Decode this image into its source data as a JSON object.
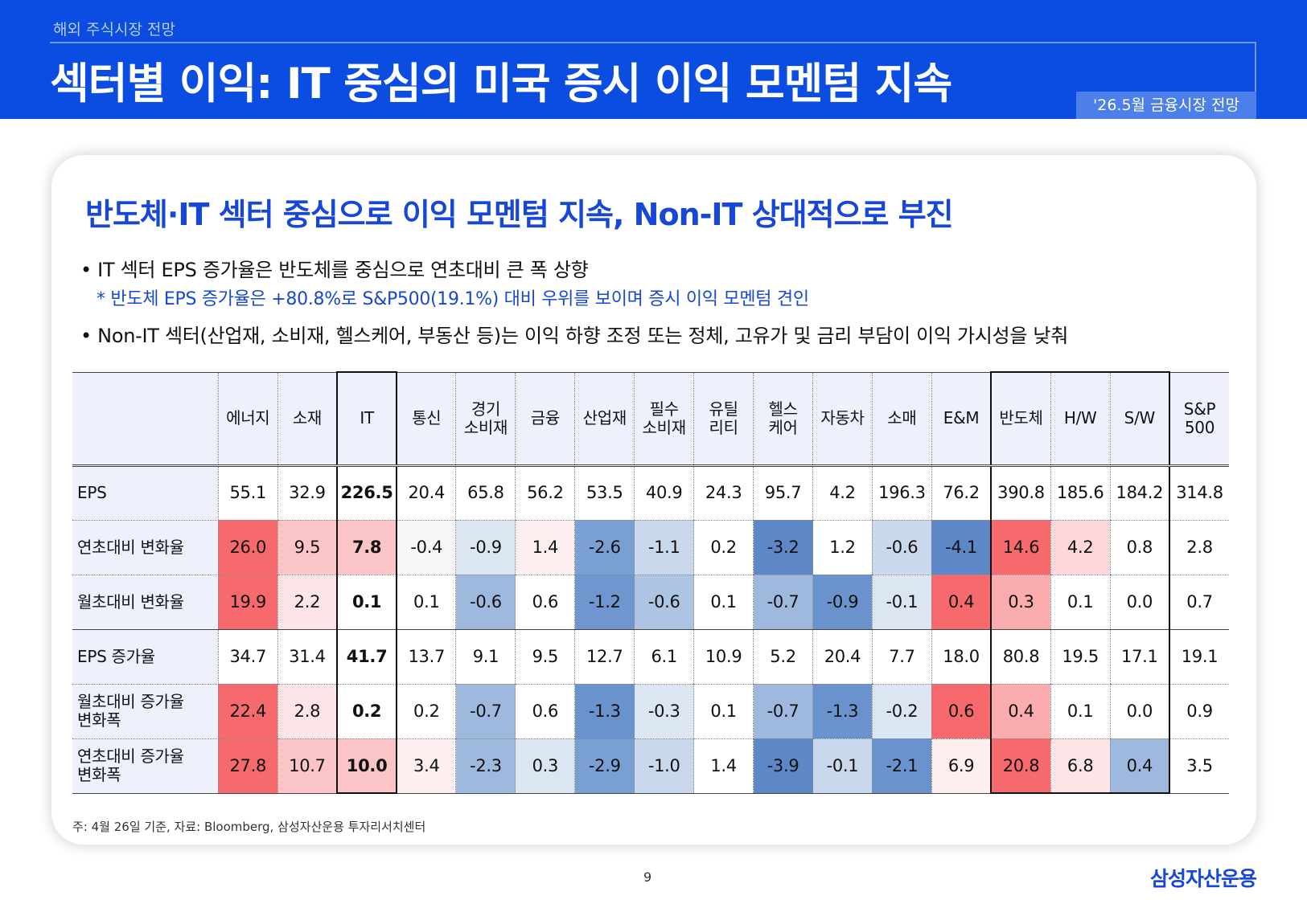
{
  "header": {
    "subtitle": "해외 주식시장 전망",
    "title": "섹터별 이익: IT 중심의 미국 증시 이익 모멘텀 지속",
    "badge": "'26.5월 금융시장 전망"
  },
  "card": {
    "headline": "반도체·IT 섹터 중심으로 이익 모멘텀 지속, Non-IT 상대적으로 부진",
    "bullet1": "• IT 섹터 EPS 증가율은 반도체를 중심으로 연초대비 큰 폭 상향",
    "sub1": "* 반도체 EPS 증가율은 +80.8%로 S&P500(19.1%) 대비 우위를 보이며 증시 이익 모멘텀 견인",
    "bullet2": "• Non-IT 섹터(산업재, 소비재, 헬스케어, 부동산 등)는 이익 하향 조정 또는 정체, 고유가 및 금리 부담이 이익 가시성을 낮춰"
  },
  "table": {
    "columns": [
      {
        "l1": "에너지",
        "l2": ""
      },
      {
        "l1": "소재",
        "l2": ""
      },
      {
        "l1": "IT",
        "l2": ""
      },
      {
        "l1": "통신",
        "l2": ""
      },
      {
        "l1": "경기",
        "l2": "소비재"
      },
      {
        "l1": "금융",
        "l2": ""
      },
      {
        "l1": "산업재",
        "l2": ""
      },
      {
        "l1": "필수",
        "l2": "소비재"
      },
      {
        "l1": "유틸",
        "l2": "리티"
      },
      {
        "l1": "헬스",
        "l2": "케어"
      },
      {
        "l1": "자동차",
        "l2": ""
      },
      {
        "l1": "소매",
        "l2": ""
      },
      {
        "l1": "E&M",
        "l2": ""
      },
      {
        "l1": "반도체",
        "l2": ""
      },
      {
        "l1": "H/W",
        "l2": ""
      },
      {
        "l1": "S/W",
        "l2": ""
      },
      {
        "l1": "S&P",
        "l2": "500"
      }
    ],
    "rows": [
      {
        "label": "EPS",
        "label2": "",
        "colored": false,
        "values": [
          "55.1",
          "32.9",
          "226.5",
          "20.4",
          "65.8",
          "56.2",
          "53.5",
          "40.9",
          "24.3",
          "95.7",
          "4.2",
          "196.3",
          "76.2",
          "390.8",
          "185.6",
          "184.2",
          "314.8"
        ]
      },
      {
        "label": "연초대비 변화율",
        "label2": "",
        "colored": true,
        "values": [
          "26.0",
          "9.5",
          "7.8",
          "-0.4",
          "-0.9",
          "1.4",
          "-2.6",
          "-1.1",
          "0.2",
          "-3.2",
          "1.2",
          "-0.6",
          "-4.1",
          "14.6",
          "4.2",
          "0.8",
          "2.8"
        ]
      },
      {
        "label": "월초대비 변화율",
        "label2": "",
        "colored": true,
        "values": [
          "19.9",
          "2.2",
          "0.1",
          "0.1",
          "-0.6",
          "0.6",
          "-1.2",
          "-0.6",
          "0.1",
          "-0.7",
          "-0.9",
          "-0.1",
          "0.4",
          "0.3",
          "0.1",
          "0.0",
          "0.7"
        ]
      },
      {
        "label": "EPS 증가율",
        "label2": "",
        "colored": false,
        "values": [
          "34.7",
          "31.4",
          "41.7",
          "13.7",
          "9.1",
          "9.5",
          "12.7",
          "6.1",
          "10.9",
          "5.2",
          "20.4",
          "7.7",
          "18.0",
          "80.8",
          "19.5",
          "17.1",
          "19.1"
        ]
      },
      {
        "label": "월초대비 증가율",
        "label2": "변화폭",
        "colored": true,
        "values": [
          "22.4",
          "2.8",
          "0.2",
          "0.2",
          "-0.7",
          "0.6",
          "-1.3",
          "-0.3",
          "0.1",
          "-0.7",
          "-1.3",
          "-0.2",
          "0.6",
          "0.4",
          "0.1",
          "0.0",
          "0.9"
        ]
      },
      {
        "label": "연초대비 증가율",
        "label2": "변화폭",
        "colored": true,
        "values": [
          "27.8",
          "10.7",
          "10.0",
          "3.4",
          "-2.3",
          "0.3",
          "-2.9",
          "-1.0",
          "1.4",
          "-3.9",
          "-0.1",
          "-2.1",
          "6.9",
          "20.8",
          "6.8",
          "0.4",
          "3.5"
        ]
      }
    ],
    "cell_colors": [
      [
        "#ffffff",
        "#ffffff",
        "#ffffff",
        "#ffffff",
        "#ffffff",
        "#ffffff",
        "#ffffff",
        "#ffffff",
        "#ffffff",
        "#ffffff",
        "#ffffff",
        "#ffffff",
        "#ffffff",
        "#ffffff",
        "#ffffff",
        "#ffffff",
        "#ffffff"
      ],
      [
        "#f66a6d",
        "#fbc5c7",
        "#fbc5c7",
        "#f8f8fb",
        "#dce6f2",
        "#fdeef0",
        "#7a9fd2",
        "#c9d8ec",
        "#ffffff",
        "#5d87c6",
        "#ffffff",
        "#c9d8ec",
        "#5d87c6",
        "#f66a6d",
        "#fdd7d9",
        "#ffffff",
        "#ffffff"
      ],
      [
        "#f66a6d",
        "#fde4e6",
        "#ffffff",
        "#ffffff",
        "#9fb9de",
        "#ffffff",
        "#6f96cf",
        "#aec4e3",
        "#ffffff",
        "#9fb9de",
        "#6a92cd",
        "#dce6f2",
        "#f66a6d",
        "#fbacae",
        "#ffffff",
        "#ffffff",
        "#ffffff"
      ],
      [
        "#ffffff",
        "#ffffff",
        "#ffffff",
        "#ffffff",
        "#ffffff",
        "#ffffff",
        "#ffffff",
        "#ffffff",
        "#ffffff",
        "#ffffff",
        "#ffffff",
        "#ffffff",
        "#ffffff",
        "#ffffff",
        "#ffffff",
        "#ffffff",
        "#ffffff"
      ],
      [
        "#f66a6d",
        "#fde4e6",
        "#ffffff",
        "#ffffff",
        "#9fb9de",
        "#ffffff",
        "#6a92cd",
        "#dce6f2",
        "#ffffff",
        "#9fb9de",
        "#6a92cd",
        "#dce6f2",
        "#f66a6d",
        "#fbacae",
        "#ffffff",
        "#ffffff",
        "#ffffff"
      ],
      [
        "#f66a6d",
        "#fbc5c7",
        "#fbc5c7",
        "#fdeef0",
        "#9fb9de",
        "#dce6f2",
        "#7a9fd2",
        "#c9d8ec",
        "#ffffff",
        "#5d87c6",
        "#c9d8ec",
        "#6a92cd",
        "#fdeef0",
        "#f66a6d",
        "#fde4e6",
        "#9fb9de",
        "#ffffff"
      ]
    ],
    "highlight_columns": [
      "IT",
      "반도체",
      "H/W",
      "S/W"
    ]
  },
  "footer": {
    "note": "주: 4월 26일 기준, 자료: Bloomberg, 삼성자산운용 투자리서치센터",
    "page": "9",
    "logo": "삼성자산운용"
  }
}
